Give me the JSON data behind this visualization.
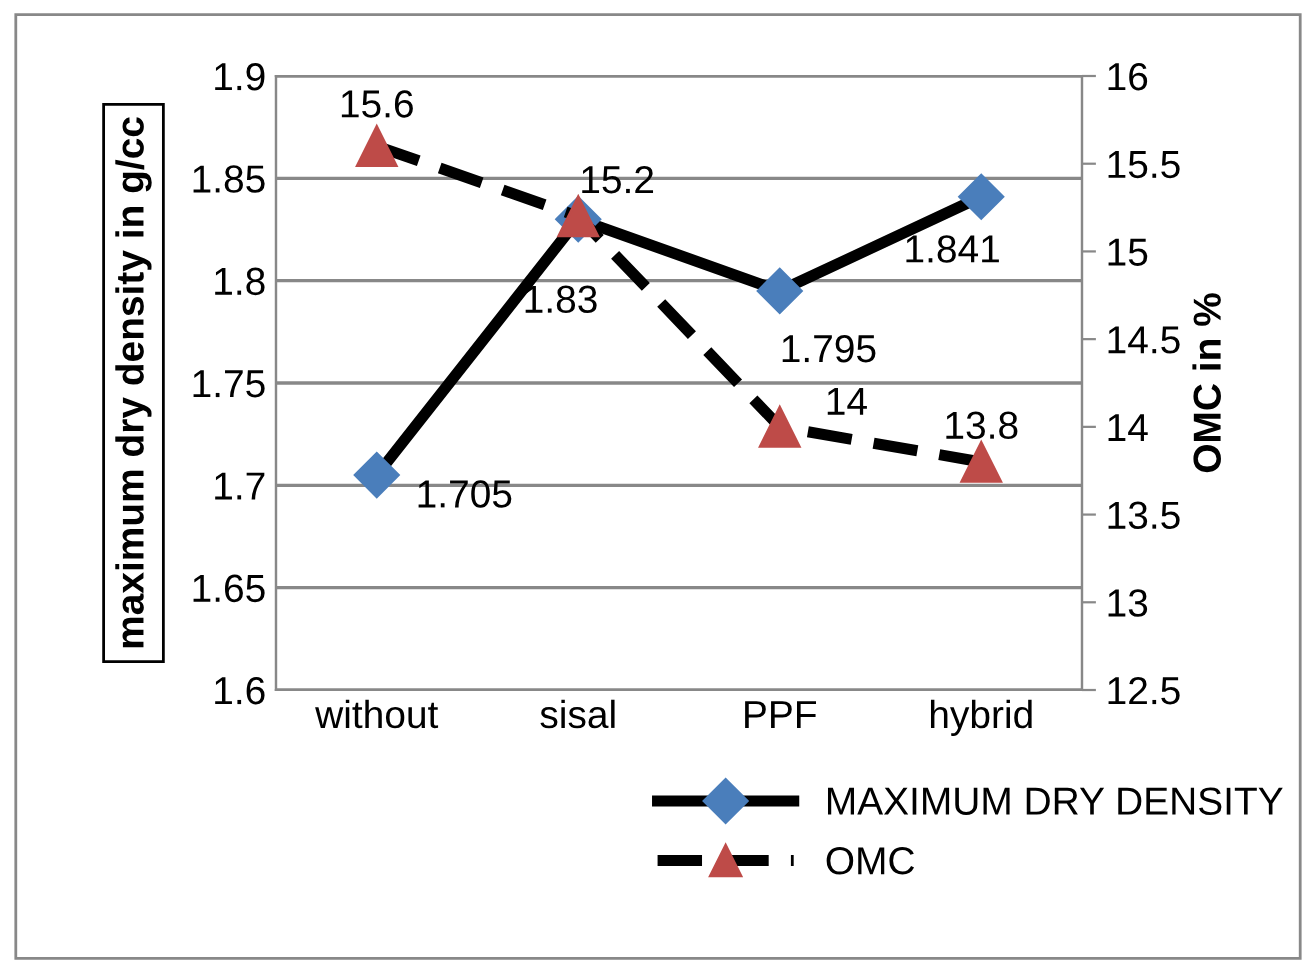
{
  "chart_data": {
    "type": "line",
    "categories": [
      "without",
      "sisal",
      "PPF",
      "hybrid"
    ],
    "series": [
      {
        "name": "MAXIMUM DRY DENSITY",
        "color": "#000000",
        "colors": [
          "#4a7ebb",
          "#4a7ebb",
          "#4a7ebb",
          "#4a7ebb"
        ],
        "values": [
          1.705,
          1.83,
          1.795,
          1.841
        ],
        "marker": "diamond",
        "line_style": "solid"
      },
      {
        "name": "OMC",
        "color": "#000000",
        "colors": [
          "#be4b48",
          "#be4b48",
          "#be4b48",
          "#be4b48"
        ],
        "values": [
          15.6,
          15.2,
          14,
          13.8
        ],
        "marker": "triangle",
        "line_style": "dashed",
        "axis": "y2"
      }
    ],
    "ylabel": "maximum dry density in g/cc",
    "y2label": "OMC in %",
    "ylim": [
      1.6,
      1.9
    ],
    "yticks": [
      1.6,
      1.65,
      1.7,
      1.75,
      1.8,
      1.85,
      1.9
    ],
    "y2lim": [
      12.5,
      16
    ],
    "y2ticks": [
      12.5,
      13,
      13.5,
      14,
      14.5,
      15,
      15.5,
      16
    ],
    "grid": "y",
    "legend": "bottom",
    "data_labels": true
  }
}
